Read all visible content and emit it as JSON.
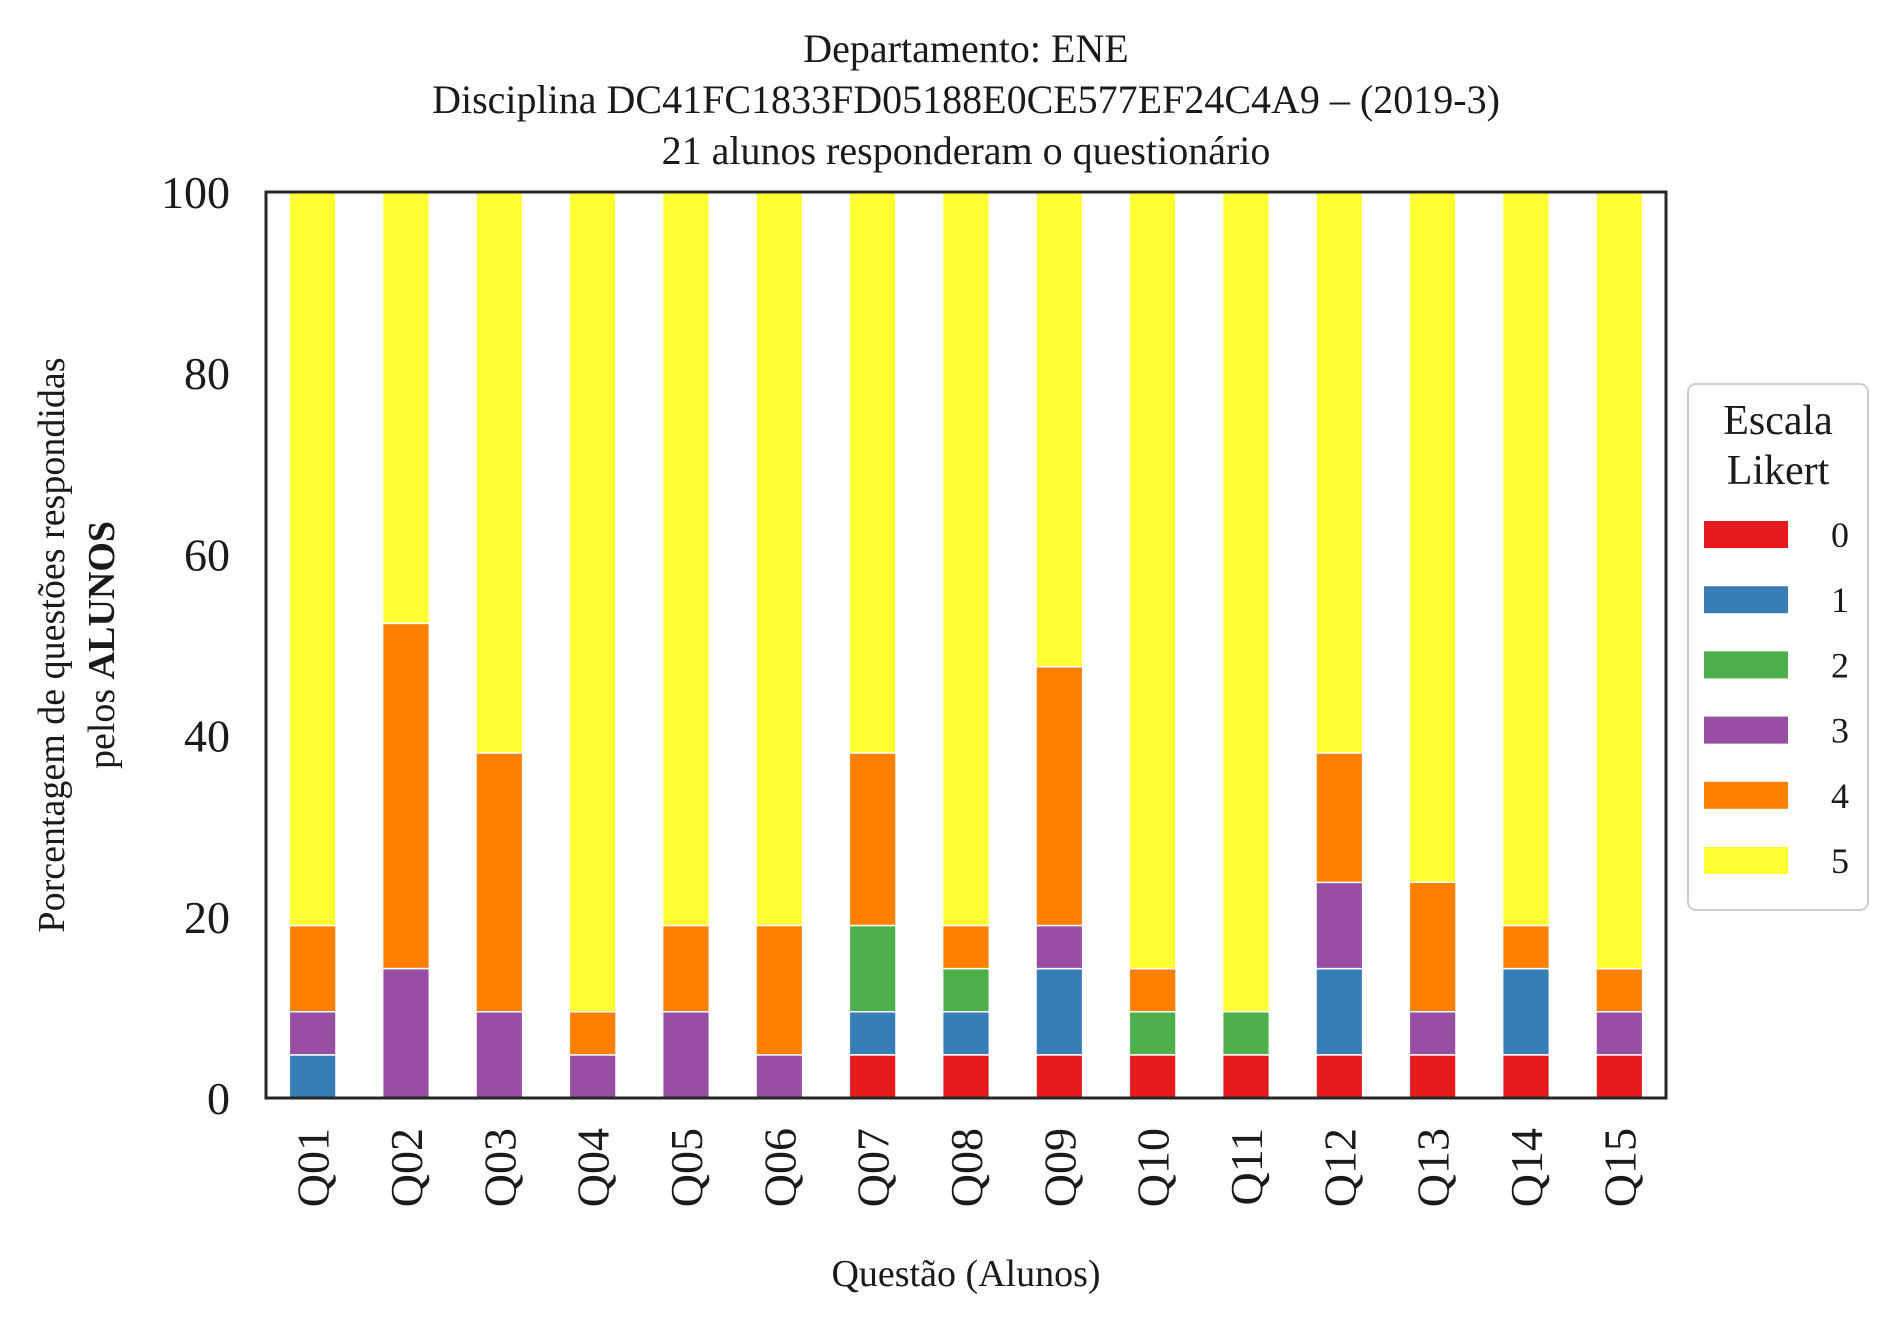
{
  "chart_data": {
    "type": "bar",
    "stacked": true,
    "title_lines": [
      "Departamento: ENE",
      "Disciplina DC41FC1833FD05188E0CE577EF24C4A9 – (2019-3)",
      "21 alunos responderam o questionário"
    ],
    "xlabel": "Questão (Alunos)",
    "ylabel_line1": "Porcentagem de questões respondidas",
    "ylabel_line2_prefix": "pelos ",
    "ylabel_line2_bold": "ALUNOS",
    "ylim": [
      0,
      100
    ],
    "yticks": [
      "0",
      "20",
      "40",
      "60",
      "80",
      "100"
    ],
    "grid": false,
    "legend": {
      "title_lines": [
        "Escala",
        "Likert"
      ],
      "placement": "center-right outside"
    },
    "categories": [
      "Q01",
      "Q02",
      "Q03",
      "Q04",
      "Q05",
      "Q06",
      "Q07",
      "Q08",
      "Q09",
      "Q10",
      "Q11",
      "Q12",
      "Q13",
      "Q14",
      "Q15"
    ],
    "series": [
      {
        "name": "0",
        "color": "#e41a1c",
        "values": [
          0,
          0,
          0,
          0,
          0,
          0,
          4.76,
          4.76,
          4.76,
          4.76,
          4.76,
          4.76,
          4.76,
          4.76,
          4.76
        ]
      },
      {
        "name": "1",
        "color": "#377eb8",
        "values": [
          4.76,
          0,
          0,
          0,
          0,
          0,
          4.76,
          4.76,
          9.52,
          0,
          0,
          9.52,
          0,
          9.52,
          0
        ]
      },
      {
        "name": "2",
        "color": "#4daf4a",
        "values": [
          0,
          0,
          0,
          0,
          0,
          0,
          9.52,
          4.76,
          0,
          4.76,
          4.76,
          0,
          0,
          0,
          0
        ]
      },
      {
        "name": "3",
        "color": "#984ea3",
        "values": [
          4.76,
          14.29,
          9.52,
          4.76,
          9.52,
          4.76,
          0,
          0,
          4.76,
          0,
          0,
          9.52,
          4.76,
          0,
          4.76
        ]
      },
      {
        "name": "4",
        "color": "#ff7f00",
        "values": [
          9.52,
          38.1,
          28.57,
          4.76,
          9.52,
          14.29,
          19.05,
          4.76,
          28.57,
          4.76,
          0,
          14.29,
          14.29,
          4.76,
          4.76
        ]
      },
      {
        "name": "5",
        "color": "#ffff33",
        "values": [
          80.95,
          47.62,
          61.9,
          90.48,
          80.95,
          80.95,
          61.9,
          80.95,
          52.38,
          85.71,
          90.48,
          61.9,
          76.19,
          80.95,
          85.71
        ]
      }
    ]
  }
}
